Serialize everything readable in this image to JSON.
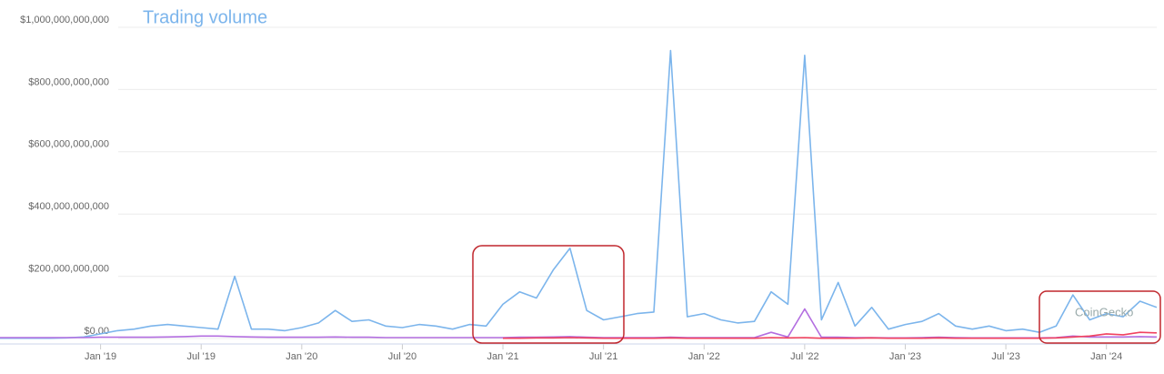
{
  "chart_data": {
    "type": "line",
    "title": "Trading volume",
    "watermark": "CoinGecko",
    "x": [
      "2018-07",
      "2018-08",
      "2018-09",
      "2018-10",
      "2018-11",
      "2018-12",
      "2019-01",
      "2019-02",
      "2019-03",
      "2019-04",
      "2019-05",
      "2019-06",
      "2019-07",
      "2019-08",
      "2019-09",
      "2019-10",
      "2019-11",
      "2019-12",
      "2020-01",
      "2020-02",
      "2020-03",
      "2020-04",
      "2020-05",
      "2020-06",
      "2020-07",
      "2020-08",
      "2020-09",
      "2020-10",
      "2020-11",
      "2020-12",
      "2021-01",
      "2021-02",
      "2021-03",
      "2021-04",
      "2021-05",
      "2021-06",
      "2021-07",
      "2021-08",
      "2021-09",
      "2021-10",
      "2021-11",
      "2021-12",
      "2022-01",
      "2022-02",
      "2022-03",
      "2022-04",
      "2022-05",
      "2022-06",
      "2022-07",
      "2022-08",
      "2022-09",
      "2022-10",
      "2022-11",
      "2022-12",
      "2023-01",
      "2023-02",
      "2023-03",
      "2023-04",
      "2023-05",
      "2023-06",
      "2023-07",
      "2023-08",
      "2023-09",
      "2023-10",
      "2023-11",
      "2023-12",
      "2024-01",
      "2024-02",
      "2024-03",
      "2024-04"
    ],
    "series": [
      {
        "color": "#7cb5ec",
        "values": [
          1000000000,
          1000000000,
          1000000000,
          1000000000,
          2000000000,
          5000000000,
          15000000000,
          25000000000,
          30000000000,
          40000000000,
          45000000000,
          40000000000,
          35000000000,
          30000000000,
          200000000000,
          30000000000,
          30000000000,
          25000000000,
          35000000000,
          50000000000,
          90000000000,
          55000000000,
          60000000000,
          40000000000,
          35000000000,
          45000000000,
          40000000000,
          30000000000,
          45000000000,
          40000000000,
          110000000000,
          150000000000,
          130000000000,
          220000000000,
          290000000000,
          90000000000,
          60000000000,
          70000000000,
          80000000000,
          85000000000,
          925000000000,
          70000000000,
          80000000000,
          60000000000,
          50000000000,
          55000000000,
          150000000000,
          110000000000,
          910000000000,
          60000000000,
          180000000000,
          40000000000,
          100000000000,
          30000000000,
          45000000000,
          55000000000,
          80000000000,
          40000000000,
          30000000000,
          40000000000,
          25000000000,
          30000000000,
          20000000000,
          40000000000,
          140000000000,
          60000000000,
          80000000000,
          70000000000,
          120000000000,
          100000000000
        ]
      },
      {
        "color": "#b36ee0",
        "values": [
          3000000000,
          3000000000,
          3000000000,
          3000000000,
          3000000000,
          3000000000,
          4000000000,
          4000000000,
          4000000000,
          4000000000,
          5000000000,
          6000000000,
          8000000000,
          8000000000,
          6000000000,
          5000000000,
          4000000000,
          4000000000,
          4000000000,
          4000000000,
          5000000000,
          4000000000,
          4000000000,
          3000000000,
          3000000000,
          3000000000,
          3000000000,
          3000000000,
          3000000000,
          3000000000,
          3000000000,
          4000000000,
          4000000000,
          5000000000,
          6000000000,
          4000000000,
          3000000000,
          3000000000,
          3000000000,
          3000000000,
          4000000000,
          3000000000,
          3000000000,
          3000000000,
          3000000000,
          3000000000,
          20000000000,
          5000000000,
          95000000000,
          4000000000,
          4000000000,
          3000000000,
          3000000000,
          2000000000,
          2000000000,
          3000000000,
          4000000000,
          3000000000,
          2000000000,
          2000000000,
          2000000000,
          2000000000,
          2000000000,
          3000000000,
          8000000000,
          5000000000,
          5000000000,
          5000000000,
          6000000000,
          5000000000
        ]
      },
      {
        "color": "#f0425f",
        "values": [
          null,
          null,
          null,
          null,
          null,
          null,
          null,
          null,
          null,
          null,
          null,
          null,
          null,
          null,
          null,
          null,
          null,
          null,
          null,
          null,
          null,
          null,
          null,
          null,
          null,
          null,
          null,
          null,
          null,
          null,
          1000000000,
          1000000000,
          2000000000,
          2000000000,
          3000000000,
          2000000000,
          1000000000,
          1000000000,
          1000000000,
          1000000000,
          2000000000,
          1000000000,
          1000000000,
          1000000000,
          1000000000,
          1000000000,
          3000000000,
          2000000000,
          3000000000,
          1000000000,
          1000000000,
          1000000000,
          2000000000,
          1000000000,
          1000000000,
          1000000000,
          2000000000,
          1000000000,
          1000000000,
          1000000000,
          1000000000,
          1000000000,
          1000000000,
          2000000000,
          5000000000,
          8000000000,
          15000000000,
          12000000000,
          20000000000,
          18000000000
        ]
      }
    ],
    "xlim": [
      "2018-07",
      "2024-04"
    ],
    "xticks": [
      {
        "value": "2019-01",
        "label": "Jan '19"
      },
      {
        "value": "2019-07",
        "label": "Jul '19"
      },
      {
        "value": "2020-01",
        "label": "Jan '20"
      },
      {
        "value": "2020-07",
        "label": "Jul '20"
      },
      {
        "value": "2021-01",
        "label": "Jan '21"
      },
      {
        "value": "2021-07",
        "label": "Jul '21"
      },
      {
        "value": "2022-01",
        "label": "Jan '22"
      },
      {
        "value": "2022-07",
        "label": "Jul '22"
      },
      {
        "value": "2023-01",
        "label": "Jan '23"
      },
      {
        "value": "2023-07",
        "label": "Jul '23"
      },
      {
        "value": "2024-01",
        "label": "Jan '24"
      }
    ],
    "ylim": [
      0,
      1000000000000
    ],
    "yticks": [
      {
        "value": 0,
        "label": "$0.00"
      },
      {
        "value": 200000000000,
        "label": "$200,000,000,000"
      },
      {
        "value": 400000000000,
        "label": "$400,000,000,000"
      },
      {
        "value": 600000000000,
        "label": "$600,000,000,000"
      },
      {
        "value": 800000000000,
        "label": "$800,000,000,000"
      },
      {
        "value": 1000000000000,
        "label": "$1,000,000,000,000"
      }
    ],
    "grid": true
  }
}
